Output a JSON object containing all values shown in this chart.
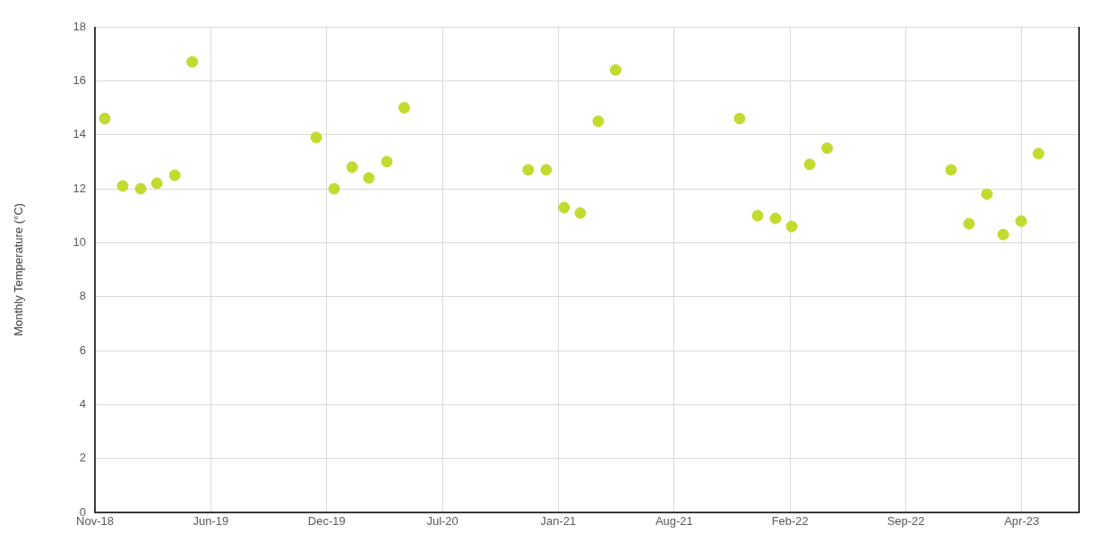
{
  "chart_data": {
    "type": "scatter",
    "ylabel": "Monthly Temperature (°C)",
    "marker": "circle",
    "grid": true,
    "legend": false,
    "x": [
      "2018-12-01",
      "2019-01-01",
      "2019-02-01",
      "2019-03-01",
      "2019-04-01",
      "2019-05-01",
      "2019-12-01",
      "2020-01-01",
      "2020-02-01",
      "2020-03-01",
      "2020-04-01",
      "2020-05-01",
      "2020-12-01",
      "2021-01-01",
      "2021-02-01",
      "2021-03-01",
      "2021-04-01",
      "2021-05-01",
      "2021-12-01",
      "2022-01-01",
      "2022-02-01",
      "2022-03-01",
      "2022-04-01",
      "2022-05-01",
      "2022-12-01",
      "2023-01-01",
      "2023-02-01",
      "2023-03-01",
      "2023-04-01",
      "2023-05-01"
    ],
    "series": [
      {
        "color": "#c3da2f",
        "values": [
          14.6,
          12.1,
          12.0,
          12.2,
          12.5,
          16.7,
          13.9,
          12.0,
          12.8,
          12.4,
          13.0,
          15.0,
          12.7,
          12.7,
          11.3,
          11.1,
          14.5,
          16.4,
          14.6,
          11.0,
          10.9,
          10.6,
          12.9,
          13.5,
          12.7,
          10.7,
          11.8,
          10.3,
          10.8,
          13.3
        ]
      }
    ],
    "xlim": [
      "2018-11-14",
      "2023-07-10"
    ],
    "xticks": [
      {
        "value": "2018-11-14",
        "label": "Nov-18"
      },
      {
        "value": "2019-06-02",
        "label": "Jun-19"
      },
      {
        "value": "2019-12-19",
        "label": "Dec-19"
      },
      {
        "value": "2020-07-06",
        "label": "Jul-20"
      },
      {
        "value": "2021-01-22",
        "label": "Jan-21"
      },
      {
        "value": "2021-08-10",
        "label": "Aug-21"
      },
      {
        "value": "2022-02-26",
        "label": "Feb-22"
      },
      {
        "value": "2022-09-14",
        "label": "Sep-22"
      },
      {
        "value": "2023-04-02",
        "label": "Apr-23"
      }
    ],
    "ylim": [
      0,
      18
    ],
    "yticks": [
      0,
      2,
      4,
      6,
      8,
      10,
      12,
      14,
      16,
      18
    ]
  }
}
